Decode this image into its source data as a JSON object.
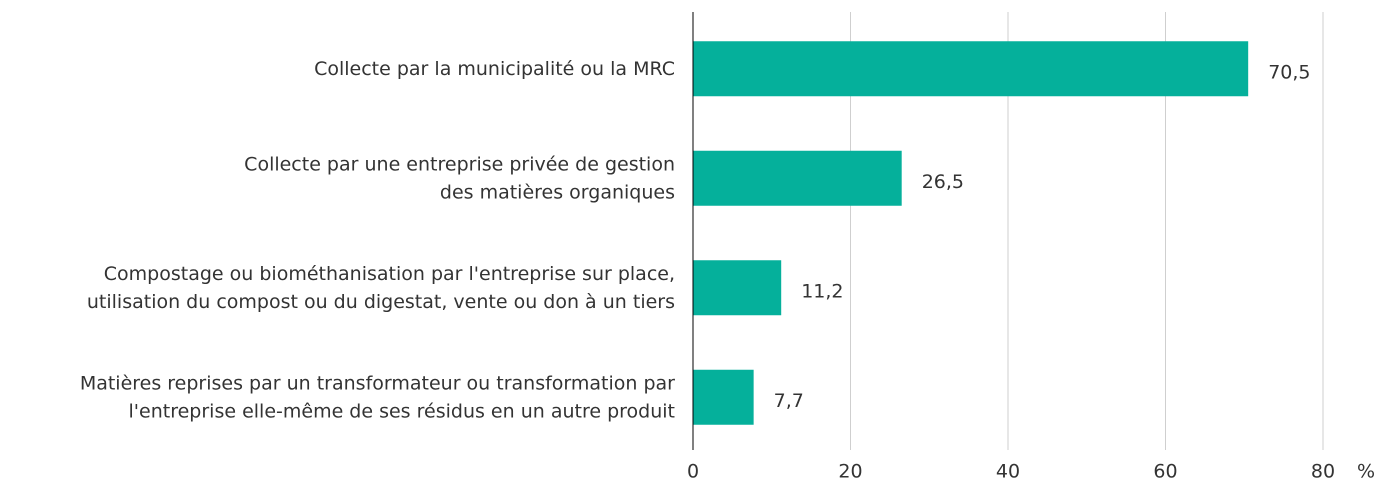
{
  "chart_data": {
    "type": "bar",
    "orientation": "horizontal",
    "categories": [
      "Collecte par la municipalité ou la MRC",
      "Collecte par une entreprise privée de gestion\ndes matières organiques",
      "Compostage ou biométhanisation par l'entreprise sur place,\nutilisation du compost ou du digestat, vente ou don à un tiers",
      "Matières reprises par un transformateur ou transformation par\nl'entreprise elle-même de ses résidus en un autre produit"
    ],
    "values": [
      70.5,
      26.5,
      11.2,
      7.7
    ],
    "value_labels": [
      "70,5",
      "26,5",
      "11,2",
      "7,7"
    ],
    "color": "#05b09b",
    "xlim": [
      0,
      80
    ],
    "xticks": [
      0,
      20,
      40,
      60,
      80
    ],
    "x_label": "%",
    "grid": true
  }
}
